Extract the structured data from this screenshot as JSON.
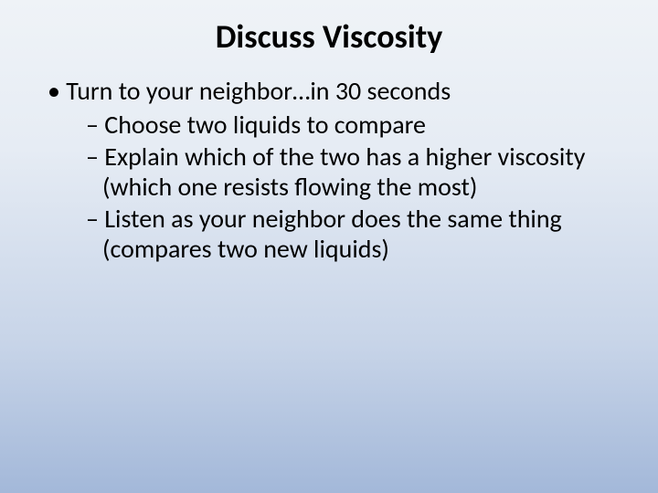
{
  "slide": {
    "title": "Discuss Viscosity",
    "bullets": {
      "main": "Turn to your neighbor…in 30 seconds",
      "sub": [
        "Choose two liquids to compare",
        "Explain which of the two has a higher viscosity (which one resists flowing the most)",
        "Listen as your neighbor does the same thing (compares two new liquids)"
      ]
    }
  },
  "style": {
    "background_gradient": [
      "#eff3f7",
      "#e6ecf4",
      "#c7d4e8",
      "#a3b8d9"
    ],
    "text_color": "#000000",
    "title_fontsize": 36,
    "body_fontsize": 28,
    "font_family": "Calibri"
  }
}
